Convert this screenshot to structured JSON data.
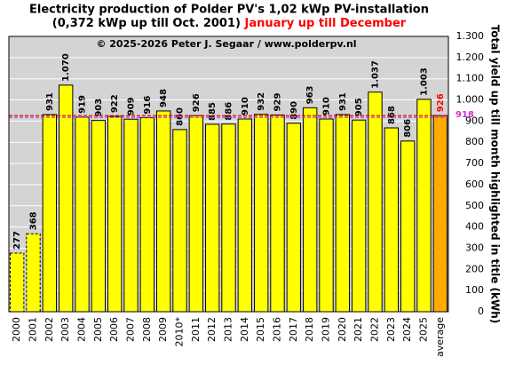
{
  "chart_data": {
    "type": "bar",
    "title": "Electricity production  of Polder  PV's 1,02 kWp PV-installation",
    "subtitle": "(0,372 kWp up till Oct. 2001)",
    "subtitle_highlight": "January up till December",
    "annotation": "© 2025-2026 Peter J. Segaar / www.polderpv.nl",
    "y_label": "Total yield up till month highlighted in title (kWh)",
    "categories": [
      "2000",
      "2001",
      "2002",
      "2003",
      "2004",
      "2005",
      "2006",
      "2007",
      "2008",
      "2009",
      "2010*",
      "2011",
      "2012",
      "2013",
      "2014",
      "2015",
      "2016",
      "2017",
      "2018",
      "2019",
      "2020",
      "2021",
      "2022",
      "2023",
      "2024",
      "2025",
      "average"
    ],
    "values": [
      277,
      368,
      931,
      1070,
      919,
      903,
      922,
      909,
      916,
      948,
      860,
      926,
      885,
      886,
      910,
      932,
      929,
      890,
      963,
      910,
      931,
      905,
      1037,
      868,
      806,
      1003,
      926
    ],
    "value_labels": [
      "277",
      "368",
      "931",
      "1.070",
      "919",
      "903",
      "922",
      "909",
      "916",
      "948",
      "860",
      "926",
      "885",
      "886",
      "910",
      "932",
      "929",
      "890",
      "963",
      "910",
      "931",
      "905",
      "1.037",
      "868",
      "806",
      "1.003",
      "926"
    ],
    "colors": [
      "#ffff00",
      "#ffff00",
      "#ffff00",
      "#ffff00",
      "#ffff00",
      "#ffff00",
      "#ffff00",
      "#ffff00",
      "#ffff00",
      "#ffff00",
      "#ffff00",
      "#ffff00",
      "#ffff00",
      "#ffff00",
      "#ffff00",
      "#ffff00",
      "#ffff00",
      "#ffff00",
      "#ffff00",
      "#ffff00",
      "#ffff00",
      "#ffff00",
      "#ffff00",
      "#ffff00",
      "#ffff00",
      "#ffff00",
      "#ffaa00"
    ],
    "dashed": [
      true,
      true,
      false,
      false,
      false,
      false,
      false,
      false,
      false,
      false,
      false,
      false,
      false,
      false,
      false,
      false,
      false,
      false,
      false,
      false,
      false,
      false,
      false,
      false,
      false,
      false,
      false
    ],
    "label_colors": [
      "#000000",
      "#000000",
      "#000000",
      "#000000",
      "#000000",
      "#000000",
      "#000000",
      "#000000",
      "#000000",
      "#000000",
      "#000000",
      "#000000",
      "#000000",
      "#000000",
      "#000000",
      "#000000",
      "#000000",
      "#000000",
      "#000000",
      "#000000",
      "#000000",
      "#000000",
      "#000000",
      "#000000",
      "#000000",
      "#000000",
      "#ff0000"
    ],
    "reference_lines": [
      {
        "value": 918,
        "label": "918",
        "color": "#cc33cc"
      },
      {
        "value": 926,
        "color": "#cc0000"
      }
    ],
    "ylim": [
      0,
      1300
    ],
    "yticks": [
      0,
      100,
      200,
      300,
      400,
      500,
      600,
      700,
      800,
      900,
      {
        "value": 1000,
        "label": "1.000"
      },
      {
        "value": 1100,
        "label": "1.100"
      },
      {
        "value": 1200,
        "label": "1.200"
      },
      {
        "value": 1300,
        "label": "1.300"
      }
    ],
    "grid": true
  }
}
